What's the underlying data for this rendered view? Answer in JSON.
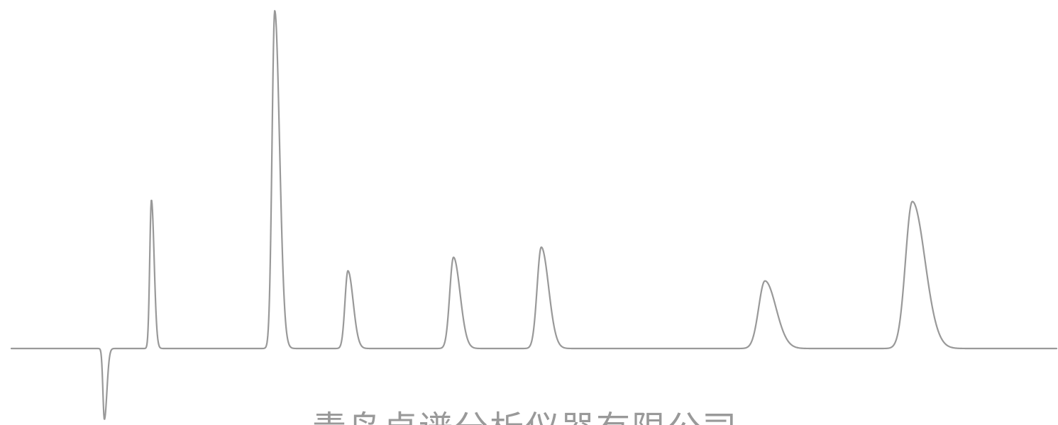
{
  "colors": {
    "trace": "#999999",
    "text": "#999999",
    "background": "#ffffff"
  },
  "footer": {
    "company": "青岛卓谱分析仪器有限公司"
  },
  "chart_data": {
    "type": "line",
    "title": "",
    "xlabel": "",
    "ylabel": "",
    "grid": false,
    "axes_visible": false,
    "xlim": [
      0,
      100
    ],
    "ylim": [
      -22,
      100
    ],
    "series": [
      {
        "peaks": [
          {
            "center": 8.9,
            "height": -21,
            "sigma": 0.14,
            "tail": 0.1
          },
          {
            "center": 13.4,
            "height": 44,
            "sigma": 0.16,
            "tail": 0.1
          },
          {
            "center": 25.2,
            "height": 100,
            "sigma": 0.26,
            "tail": 0.2
          },
          {
            "center": 32.2,
            "height": 23,
            "sigma": 0.28,
            "tail": 0.22
          },
          {
            "center": 42.3,
            "height": 27,
            "sigma": 0.36,
            "tail": 0.27
          },
          {
            "center": 50.7,
            "height": 30,
            "sigma": 0.4,
            "tail": 0.3
          },
          {
            "center": 72.1,
            "height": 20,
            "sigma": 0.6,
            "tail": 0.45
          },
          {
            "center": 86.2,
            "height": 43.5,
            "sigma": 0.65,
            "tail": 0.55
          }
        ]
      }
    ]
  }
}
